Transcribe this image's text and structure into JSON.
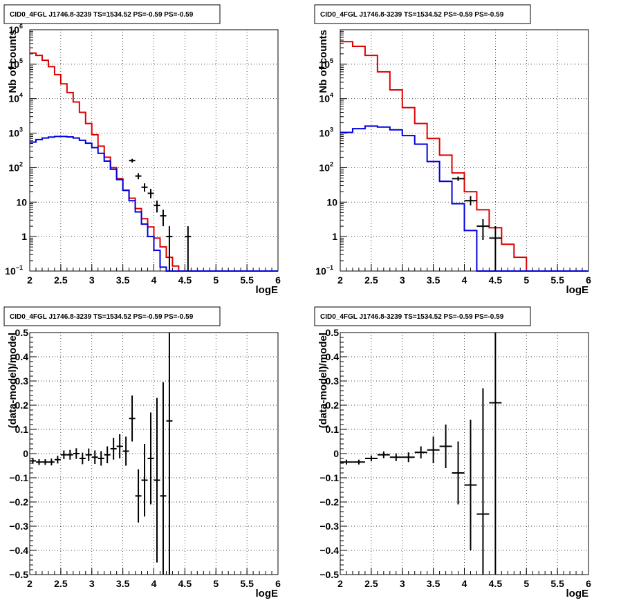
{
  "colors": {
    "data": "#000000",
    "total_model": "#dd0000",
    "source_model": "#0000dd"
  },
  "chart_data": [
    {
      "type": "histogram",
      "title": "CID0_4FGL J1746.8-3239 TS=1534.52 PS=-0.59 PS=-0.59",
      "xlabel": "logE",
      "ylabel": "Nb of counts",
      "xlim": [
        2,
        6
      ],
      "ylim": [
        0.1,
        1000000
      ],
      "yscale": "log",
      "grid": true,
      "x_ticks": [
        "2",
        "2.5",
        "3",
        "3.5",
        "4",
        "4.5",
        "5",
        "5.5",
        "6"
      ],
      "y_ticks": [
        {
          "base": "10",
          "exp": "−1"
        },
        {
          "base": "1",
          "exp": ""
        },
        {
          "base": "10",
          "exp": ""
        },
        {
          "base": "10",
          "exp": "2"
        },
        {
          "base": "10",
          "exp": "3"
        },
        {
          "base": "10",
          "exp": "4"
        },
        {
          "base": "10",
          "exp": "5"
        },
        {
          "base": "10",
          "exp": "6"
        }
      ],
      "bin_edges": [
        2.0,
        2.1,
        2.2,
        2.3,
        2.4,
        2.5,
        2.6,
        2.7,
        2.8,
        2.9,
        3.0,
        3.1,
        3.2,
        3.3,
        3.4,
        3.5,
        3.6,
        3.7,
        3.8,
        3.9,
        4.0,
        4.1,
        4.2,
        4.3,
        4.4,
        4.5,
        4.6,
        4.7,
        4.8,
        4.9,
        5.0,
        5.1,
        5.2,
        5.3,
        5.4,
        5.5,
        5.6,
        5.7,
        5.8,
        5.9,
        6.0
      ],
      "series": [
        {
          "name": "",
          "color_key": "total_model",
          "style": "step",
          "values": [
            210000,
            180000,
            130000,
            85000,
            50000,
            27000,
            15000,
            8000,
            4000,
            1900,
            900,
            420,
            200,
            100,
            48,
            22,
            13,
            6.5,
            3.3,
            1.9,
            0.9,
            0.5,
            0.25,
            0.14,
            0.1,
            0.1,
            0.1,
            0.1,
            0.1,
            0.1,
            0.1,
            0.1,
            0.1,
            0.1,
            0.1,
            0.1,
            0.1,
            0.1,
            0.1,
            0.1
          ]
        },
        {
          "name": "",
          "color_key": "source_model",
          "style": "step",
          "values": [
            550,
            650,
            720,
            770,
            800,
            800,
            780,
            720,
            620,
            510,
            380,
            260,
            155,
            90,
            45,
            22,
            11,
            5.2,
            2.3,
            1.0,
            0.4,
            0.13,
            0.1,
            0.1,
            0.1,
            0.1,
            0.1,
            0.1,
            0.1,
            0.1,
            0.1,
            0.1,
            0.1,
            0.1,
            0.1,
            0.1,
            0.1,
            0.1,
            0.1,
            0.1
          ]
        },
        {
          "name": "",
          "color_key": "data",
          "style": "errorbar",
          "points": [
            {
              "x": 3.65,
              "y": 160,
              "lo": 140,
              "hi": 180
            },
            {
              "x": 3.75,
              "y": 57,
              "lo": 46,
              "hi": 69
            },
            {
              "x": 3.85,
              "y": 27,
              "lo": 20,
              "hi": 35
            },
            {
              "x": 3.95,
              "y": 18,
              "lo": 13,
              "hi": 24
            },
            {
              "x": 4.05,
              "y": 8,
              "lo": 5,
              "hi": 11
            },
            {
              "x": 4.15,
              "y": 4,
              "lo": 2,
              "hi": 6
            },
            {
              "x": 4.25,
              "y": 1,
              "lo": 0.1,
              "hi": 2
            },
            {
              "x": 4.55,
              "y": 1,
              "lo": 0.1,
              "hi": 2
            }
          ]
        }
      ]
    },
    {
      "type": "histogram",
      "title": "CID0_4FGL J1746.8-3239 TS=1534.52 PS=-0.59 PS=-0.59",
      "xlabel": "logE",
      "ylabel": "Nb of counts",
      "xlim": [
        2,
        6
      ],
      "ylim": [
        0.1,
        1000000
      ],
      "yscale": "log",
      "grid": true,
      "x_ticks": [
        "2",
        "2.5",
        "3",
        "3.5",
        "4",
        "4.5",
        "5",
        "5.5",
        "6"
      ],
      "y_ticks": [
        {
          "base": "10",
          "exp": "−1"
        },
        {
          "base": "1",
          "exp": ""
        },
        {
          "base": "10",
          "exp": ""
        },
        {
          "base": "10",
          "exp": "2"
        },
        {
          "base": "10",
          "exp": "3"
        },
        {
          "base": "10",
          "exp": "4"
        },
        {
          "base": "10",
          "exp": "5"
        }
      ],
      "bin_edges": [
        2.0,
        2.2,
        2.4,
        2.6,
        2.8,
        3.0,
        3.2,
        3.4,
        3.6,
        3.8,
        4.0,
        4.2,
        4.4,
        4.6,
        4.8,
        5.0,
        5.2,
        5.4,
        5.6,
        5.8,
        6.0
      ],
      "series": [
        {
          "name": "",
          "color_key": "total_model",
          "style": "step",
          "values": [
            450000,
            330000,
            180000,
            60000,
            18000,
            5500,
            1900,
            700,
            230,
            70,
            20,
            6,
            1.8,
            0.6,
            0.25,
            0.1,
            0.1,
            0.1,
            0.1,
            0.1
          ]
        },
        {
          "name": "",
          "color_key": "source_model",
          "style": "step",
          "values": [
            1050,
            1350,
            1600,
            1500,
            1250,
            850,
            480,
            150,
            40,
            9,
            1.5,
            0.1,
            0.1,
            0.1,
            0.1,
            0.1,
            0.1,
            0.1,
            0.1,
            0.1
          ]
        },
        {
          "name": "",
          "color_key": "data",
          "style": "errorbar",
          "points": [
            {
              "x": 3.9,
              "y": 48,
              "lo": 41,
              "hi": 55
            },
            {
              "x": 4.1,
              "y": 11,
              "lo": 8,
              "hi": 15
            },
            {
              "x": 4.3,
              "y": 2,
              "lo": 0.8,
              "hi": 3.2
            },
            {
              "x": 4.5,
              "y": 0.9,
              "lo": 0.1,
              "hi": 2
            }
          ]
        }
      ]
    },
    {
      "type": "errorbar",
      "title": "CID0_4FGL J1746.8-3239 TS=1534.52 PS=-0.59 PS=-0.59",
      "xlabel": "logE",
      "ylabel": "(data-model)/model",
      "xlim": [
        2,
        6
      ],
      "ylim": [
        -0.5,
        0.5
      ],
      "grid": true,
      "x_ticks": [
        "2",
        "2.5",
        "3",
        "3.5",
        "4",
        "4.5",
        "5",
        "5.5",
        "6"
      ],
      "y_ticks": [
        "−0.5",
        "−0.4",
        "−0.3",
        "−0.2",
        "−0.1",
        "0",
        "0.1",
        "0.2",
        "0.3",
        "0.4",
        "0.5"
      ],
      "x_halfwidth": 0.05,
      "points": [
        {
          "x": 2.05,
          "y": -0.03,
          "err": 0.012
        },
        {
          "x": 2.15,
          "y": -0.035,
          "err": 0.012
        },
        {
          "x": 2.25,
          "y": -0.035,
          "err": 0.012
        },
        {
          "x": 2.35,
          "y": -0.035,
          "err": 0.014
        },
        {
          "x": 2.45,
          "y": -0.025,
          "err": 0.016
        },
        {
          "x": 2.55,
          "y": -0.005,
          "err": 0.018
        },
        {
          "x": 2.65,
          "y": -0.005,
          "err": 0.02
        },
        {
          "x": 2.75,
          "y": 0.0,
          "err": 0.022
        },
        {
          "x": 2.85,
          "y": -0.02,
          "err": 0.024
        },
        {
          "x": 2.95,
          "y": -0.005,
          "err": 0.026
        },
        {
          "x": 3.05,
          "y": -0.015,
          "err": 0.028
        },
        {
          "x": 3.15,
          "y": -0.02,
          "err": 0.03
        },
        {
          "x": 3.25,
          "y": -0.005,
          "err": 0.035
        },
        {
          "x": 3.35,
          "y": 0.02,
          "err": 0.045
        },
        {
          "x": 3.45,
          "y": 0.03,
          "err": 0.05
        },
        {
          "x": 3.55,
          "y": 0.01,
          "err": 0.06
        },
        {
          "x": 3.65,
          "y": 0.145,
          "err": 0.095
        },
        {
          "x": 3.75,
          "y": -0.175,
          "err": 0.11
        },
        {
          "x": 3.85,
          "y": -0.11,
          "err": 0.15
        },
        {
          "x": 3.95,
          "y": -0.02,
          "err": 0.19
        },
        {
          "x": 4.05,
          "y": -0.11,
          "err": 0.34
        },
        {
          "x": 4.15,
          "y": -0.175,
          "err": 0.47
        },
        {
          "x": 4.25,
          "y": 0.135,
          "err": 1.0
        }
      ]
    },
    {
      "type": "errorbar",
      "title": "CID0_4FGL J1746.8-3239 TS=1534.52 PS=-0.59 PS=-0.59",
      "xlabel": "logE",
      "ylabel": "(data-model)/model",
      "xlim": [
        2,
        6
      ],
      "ylim": [
        -0.5,
        0.5
      ],
      "grid": true,
      "x_ticks": [
        "2",
        "2.5",
        "3",
        "3.5",
        "4",
        "4.5",
        "5",
        "5.5",
        "6"
      ],
      "y_ticks": [
        "−0.5",
        "−0.4",
        "−0.3",
        "−0.2",
        "−0.1",
        "0",
        "0.1",
        "0.2",
        "0.3",
        "0.4",
        "0.5"
      ],
      "x_halfwidth": 0.1,
      "points": [
        {
          "x": 2.1,
          "y": -0.035,
          "err": 0.01
        },
        {
          "x": 2.3,
          "y": -0.035,
          "err": 0.01
        },
        {
          "x": 2.5,
          "y": -0.02,
          "err": 0.012
        },
        {
          "x": 2.7,
          "y": -0.005,
          "err": 0.014
        },
        {
          "x": 2.9,
          "y": -0.015,
          "err": 0.016
        },
        {
          "x": 3.1,
          "y": -0.015,
          "err": 0.02
        },
        {
          "x": 3.3,
          "y": 0.005,
          "err": 0.025
        },
        {
          "x": 3.5,
          "y": 0.015,
          "err": 0.055
        },
        {
          "x": 3.7,
          "y": 0.03,
          "err": 0.09
        },
        {
          "x": 3.9,
          "y": -0.08,
          "err": 0.13
        },
        {
          "x": 4.1,
          "y": -0.13,
          "err": 0.27
        },
        {
          "x": 4.3,
          "y": -0.25,
          "err": 0.52
        },
        {
          "x": 4.5,
          "y": 0.21,
          "err": 1.0
        }
      ]
    }
  ]
}
